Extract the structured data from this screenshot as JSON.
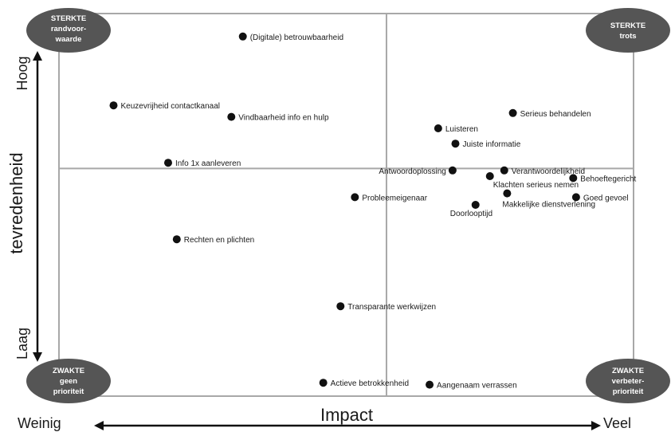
{
  "chart_data": {
    "type": "scatter",
    "x_axis": {
      "label": "Impact",
      "low_label": "Weinig",
      "high_label": "Veel",
      "range": [
        0,
        10
      ]
    },
    "y_axis": {
      "label": "tevredenheid",
      "low_label": "Laag",
      "high_label": "Hoog",
      "range": [
        0,
        10
      ]
    },
    "quadrant_split": {
      "x": 5.7,
      "y": 5.95
    },
    "grid": false,
    "corners": {
      "top_left": {
        "line1": "STERKTE",
        "line2": "randvoor-",
        "line3": "waarde"
      },
      "top_right": {
        "line1": "STERKTE",
        "line2": "trots",
        "line3": ""
      },
      "bottom_left": {
        "line1": "ZWAKTE",
        "line2": "geen",
        "line3": "prioriteit"
      },
      "bottom_right": {
        "line1": "ZWAKTE",
        "line2": "verbeter-",
        "line3": "prioriteit"
      }
    },
    "points": [
      {
        "label": "(Digitale) betrouwbaarheid",
        "x": 3.2,
        "y": 9.4
      },
      {
        "label": "Keuzevrijheid contactkanaal",
        "x": 0.95,
        "y": 7.6
      },
      {
        "label": "Vindbaarheid info en hulp",
        "x": 3.0,
        "y": 7.3
      },
      {
        "label": "Info 1x aanleveren",
        "x": 1.9,
        "y": 6.1
      },
      {
        "label": "Serieus behandelen",
        "x": 7.9,
        "y": 7.4
      },
      {
        "label": "Luisteren",
        "x": 6.6,
        "y": 7.0
      },
      {
        "label": "Juiste informatie",
        "x": 6.9,
        "y": 6.6
      },
      {
        "label": "Antwoordoplossing",
        "x": 6.85,
        "y": 5.9
      },
      {
        "label": "Verantwoordelijkheid",
        "x": 7.75,
        "y": 5.9
      },
      {
        "label": "Klachten serieus nemen",
        "x": 7.5,
        "y": 5.75
      },
      {
        "label": "Behoeftegericht",
        "x": 8.95,
        "y": 5.7
      },
      {
        "label": "Probleemeigenaar",
        "x": 5.15,
        "y": 5.2
      },
      {
        "label": "Makkelijke dienstverlening",
        "x": 7.8,
        "y": 5.3
      },
      {
        "label": "Doorlooptijd",
        "x": 7.25,
        "y": 5.0
      },
      {
        "label": "Goed gevoel",
        "x": 9.0,
        "y": 5.2
      },
      {
        "label": "Rechten en plichten",
        "x": 2.05,
        "y": 4.1
      },
      {
        "label": "Transparante werkwijzen",
        "x": 4.9,
        "y": 2.35
      },
      {
        "label": "Actieve betrokkenheid",
        "x": 4.6,
        "y": 0.35
      },
      {
        "label": "Aangenaam verrassen",
        "x": 6.45,
        "y": 0.3
      }
    ]
  },
  "colors": {
    "frame": "#a8a8a8",
    "dot": "#111111",
    "corner_fill": "#555555",
    "corner_text": "#ffffff"
  }
}
